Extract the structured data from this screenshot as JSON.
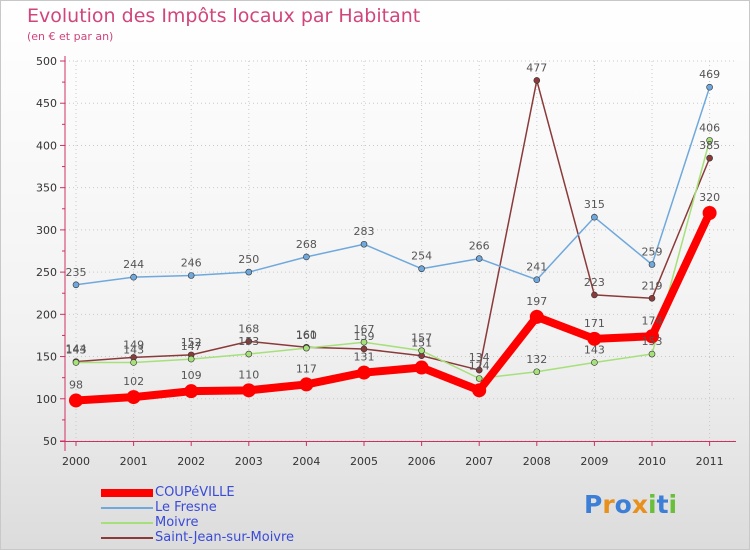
{
  "chart_data": {
    "type": "line",
    "title": "Evolution des Impôts locaux par Habitant",
    "subtitle": "(en € et par an)",
    "xlabel": "",
    "ylabel": "",
    "ylim": [
      50,
      500
    ],
    "yticks": [
      "50",
      "100",
      "150",
      "200",
      "250",
      "300",
      "350",
      "400",
      "450",
      "500"
    ],
    "categories": [
      "2000",
      "2001",
      "2002",
      "2003",
      "2004",
      "2005",
      "2006",
      "2007",
      "2008",
      "2009",
      "2010",
      "2011"
    ],
    "series": [
      {
        "name": "COUPéVILLE",
        "color": "#ff0000",
        "values": [
          98,
          102,
          109,
          110,
          117,
          131,
          137,
          110,
          197,
          171,
          174,
          320
        ],
        "labels": [
          "98",
          "102",
          "109",
          "110",
          "117",
          "131",
          "",
          "",
          "197",
          "171",
          "174",
          "320"
        ]
      },
      {
        "name": "Le Fresne",
        "color": "#6fa8dc",
        "values": [
          235,
          244,
          246,
          250,
          268,
          283,
          254,
          266,
          241,
          315,
          259,
          469
        ],
        "labels": [
          "235",
          "244",
          "246",
          "250",
          "268",
          "283",
          "254",
          "266",
          "241",
          "315",
          "259",
          "469"
        ]
      },
      {
        "name": "Moivre",
        "color": "#a6e07a",
        "values": [
          143,
          143,
          147,
          153,
          160,
          167,
          157,
          124,
          132,
          143,
          153,
          406
        ],
        "labels": [
          "143",
          "143",
          "147",
          "153",
          "160",
          "167",
          "157",
          "124",
          "132",
          "143",
          "153",
          "406"
        ]
      },
      {
        "name": "Saint-Jean-sur-Moivre",
        "color": "#8b3a3a",
        "values": [
          144,
          149,
          152,
          168,
          161,
          159,
          151,
          134,
          477,
          223,
          219,
          385
        ],
        "labels": [
          "144",
          "149",
          "152",
          "168",
          "161",
          "159",
          "151",
          "134",
          "477",
          "223",
          "219",
          "385"
        ]
      }
    ]
  },
  "logo": {
    "letters": [
      "P",
      "r",
      "o",
      "x",
      "i",
      "t",
      "i"
    ],
    "colors": [
      "#3d7fd6",
      "#e8901c",
      "#3d7fd6",
      "#e8901c",
      "#6abf3a",
      "#3d7fd6",
      "#6abf3a"
    ]
  }
}
